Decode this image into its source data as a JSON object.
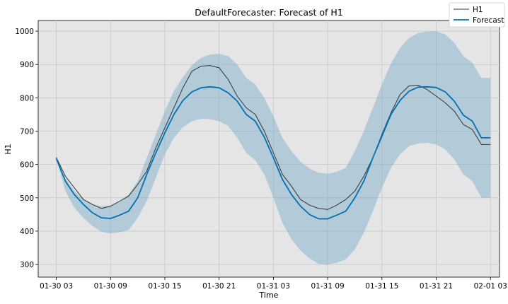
{
  "chart_data": {
    "type": "line",
    "title": "DefaultForecaster: Forecast of H1",
    "xlabel": "Time",
    "ylabel": "H1",
    "xlim": [
      0.0,
      51.0
    ],
    "ylim": [
      262,
      1032
    ],
    "x_ticks": [
      {
        "x": 2,
        "label": "01-30 03"
      },
      {
        "x": 8,
        "label": "01-30 09"
      },
      {
        "x": 14,
        "label": "01-30 15"
      },
      {
        "x": 20,
        "label": "01-30 21"
      },
      {
        "x": 26,
        "label": "01-31 03"
      },
      {
        "x": 32,
        "label": "01-31 09"
      },
      {
        "x": 38,
        "label": "01-31 15"
      },
      {
        "x": 44,
        "label": "01-31 21"
      },
      {
        "x": 50,
        "label": "02-01 03"
      }
    ],
    "y_ticks": [
      300,
      400,
      500,
      600,
      700,
      800,
      900,
      1000
    ],
    "grid": true,
    "legend_position": "top-right",
    "x": [
      2,
      3,
      4,
      5,
      6,
      7,
      8,
      9,
      10,
      11,
      12,
      13,
      14,
      15,
      16,
      17,
      18,
      19,
      20,
      21,
      22,
      23,
      24,
      25,
      26,
      27,
      28,
      29,
      30,
      31,
      32,
      33,
      34,
      35,
      36,
      37,
      38,
      39,
      40,
      41,
      42,
      43,
      44,
      45,
      46,
      47,
      48,
      49,
      50
    ],
    "series": [
      {
        "name": "H1",
        "color": "#333333",
        "values": [
          621,
          565,
          530,
          495,
          480,
          468,
          475,
          490,
          505,
          540,
          580,
          650,
          710,
          770,
          830,
          880,
          895,
          897,
          890,
          855,
          805,
          770,
          750,
          700,
          635,
          570,
          535,
          495,
          478,
          468,
          465,
          478,
          495,
          520,
          565,
          620,
          690,
          755,
          810,
          836,
          838,
          825,
          805,
          785,
          760,
          720,
          705,
          660,
          660
        ]
      },
      {
        "name": "Forecast",
        "color": "#0072B2",
        "values": [
          618,
          550,
          510,
          480,
          455,
          440,
          438,
          448,
          460,
          500,
          570,
          635,
          695,
          750,
          792,
          818,
          830,
          833,
          830,
          815,
          790,
          750,
          730,
          682,
          620,
          555,
          510,
          475,
          450,
          437,
          437,
          448,
          460,
          500,
          550,
          620,
          685,
          750,
          792,
          820,
          832,
          833,
          831,
          818,
          790,
          748,
          730,
          680,
          680
        ],
        "lower": [
          618,
          520,
          470,
          440,
          415,
          398,
          393,
          397,
          403,
          440,
          490,
          560,
          630,
          680,
          712,
          730,
          737,
          736,
          730,
          715,
          680,
          635,
          613,
          570,
          500,
          425,
          375,
          342,
          318,
          302,
          300,
          305,
          315,
          345,
          395,
          460,
          530,
          590,
          630,
          655,
          663,
          665,
          660,
          645,
          615,
          570,
          550,
          500,
          500
        ],
        "upper": [
          618,
          560,
          520,
          495,
          480,
          475,
          477,
          490,
          510,
          550,
          620,
          690,
          760,
          820,
          862,
          898,
          920,
          930,
          932,
          925,
          900,
          860,
          840,
          800,
          745,
          680,
          640,
          608,
          588,
          575,
          572,
          578,
          590,
          640,
          700,
          770,
          840,
          903,
          950,
          980,
          994,
          999,
          1000,
          990,
          965,
          925,
          905,
          860,
          860
        ]
      }
    ]
  }
}
